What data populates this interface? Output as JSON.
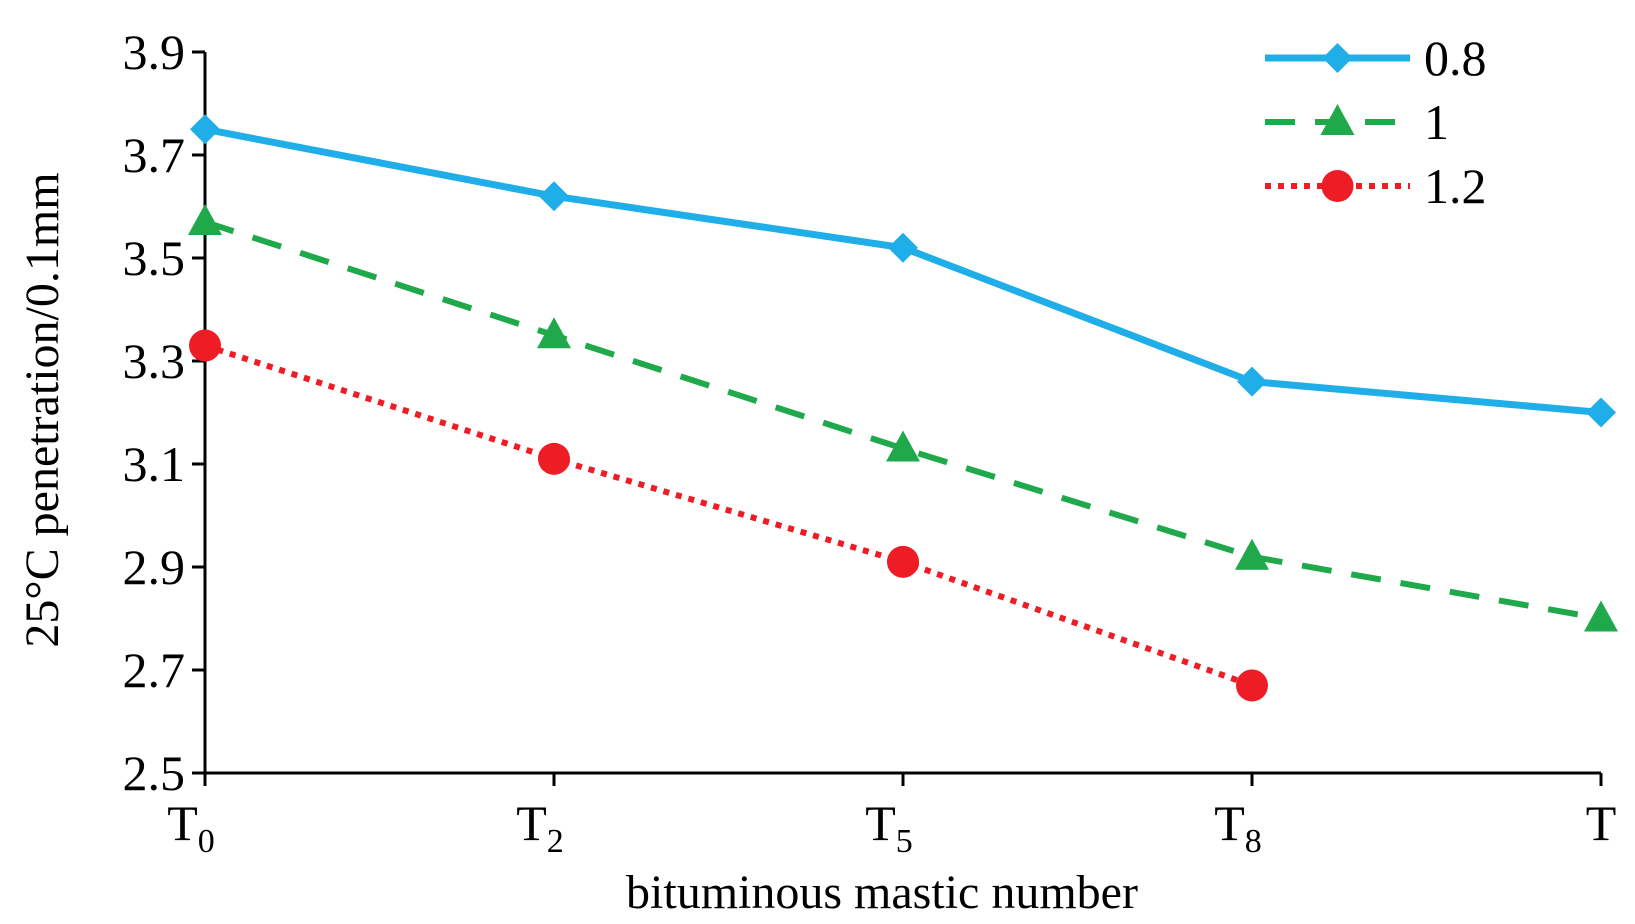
{
  "chart_data": {
    "type": "line",
    "title": "",
    "xlabel": "bituminous mastic number",
    "ylabel": "25°C penetration/0.1mm",
    "ylim": [
      2.5,
      3.9
    ],
    "yticks": [
      "2.5",
      "2.7",
      "2.9",
      "3.1",
      "3.3",
      "3.5",
      "3.7",
      "3.9"
    ],
    "categories": [
      {
        "base": "T",
        "sub": "0"
      },
      {
        "base": "T",
        "sub": "2"
      },
      {
        "base": "T",
        "sub": "5"
      },
      {
        "base": "T",
        "sub": "8"
      },
      {
        "base": "T",
        "sub": ""
      }
    ],
    "legend_position": "top-right",
    "grid": false,
    "series": [
      {
        "name": "0.8",
        "values": [
          3.75,
          3.62,
          3.52,
          3.26,
          3.2
        ],
        "color": "#1FAEE8",
        "marker": "diamond",
        "line_style": "solid"
      },
      {
        "name": "1",
        "values": [
          3.57,
          3.35,
          3.13,
          2.92,
          2.8
        ],
        "color": "#1FA94B",
        "marker": "triangle",
        "line_style": "dashed"
      },
      {
        "name": "1.2",
        "values": [
          3.33,
          3.11,
          2.91,
          2.67,
          null
        ],
        "color": "#EE1C24",
        "marker": "circle",
        "line_style": "dotted"
      }
    ]
  }
}
